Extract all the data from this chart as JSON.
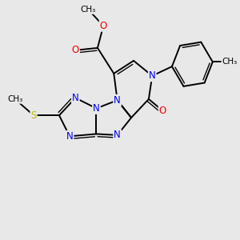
{
  "bg_color": "#e8e8e8",
  "N_color": "#0000ee",
  "O_color": "#ee0000",
  "S_color": "#bbbb00",
  "C_color": "#000000",
  "bond_color": "#000000",
  "lw": 1.4,
  "lw_double": 1.0,
  "fs": 8.5,
  "fs_sm": 7.5,
  "xlim": [
    0,
    10
  ],
  "ylim": [
    0,
    10
  ]
}
